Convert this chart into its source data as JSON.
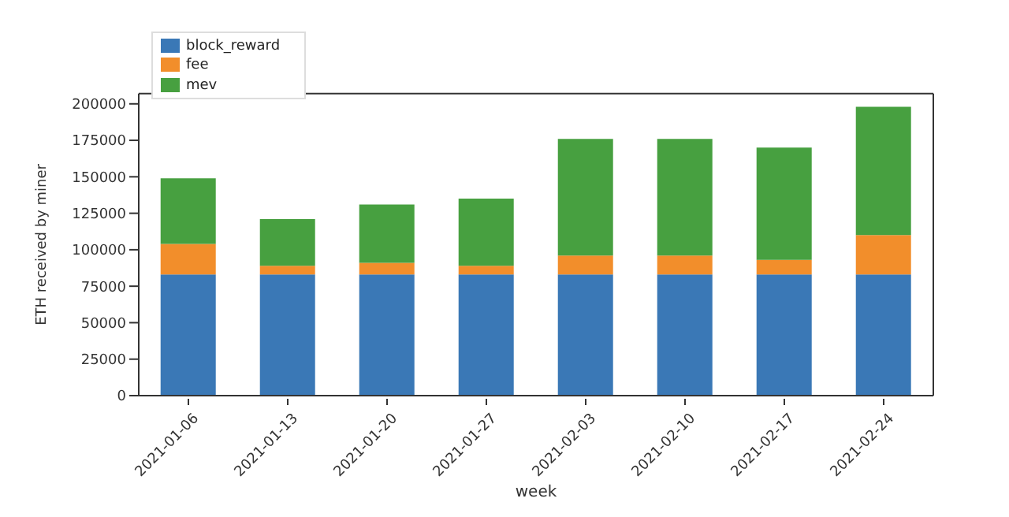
{
  "chart_data": {
    "type": "bar",
    "stacked": true,
    "xlabel": "week",
    "ylabel": "ETH received by miner",
    "categories": [
      "2021-01-06",
      "2021-01-13",
      "2021-01-20",
      "2021-01-27",
      "2021-02-03",
      "2021-02-10",
      "2021-02-17",
      "2021-02-24"
    ],
    "series": [
      {
        "name": "block_reward",
        "color": "#3a78b6",
        "values": [
          83000,
          83000,
          83000,
          83000,
          83000,
          83000,
          83000,
          83000
        ]
      },
      {
        "name": "fee",
        "color": "#f28e2b",
        "values": [
          21000,
          6000,
          8000,
          6000,
          13000,
          13000,
          10000,
          27000
        ]
      },
      {
        "name": "mev",
        "color": "#47a040",
        "values": [
          45000,
          32000,
          40000,
          46000,
          80000,
          80000,
          77000,
          88000
        ]
      }
    ],
    "ylim": [
      0,
      207000
    ],
    "yticks": [
      0,
      25000,
      50000,
      75000,
      100000,
      125000,
      150000,
      175000,
      200000
    ],
    "grid": false,
    "legend": "top left"
  }
}
